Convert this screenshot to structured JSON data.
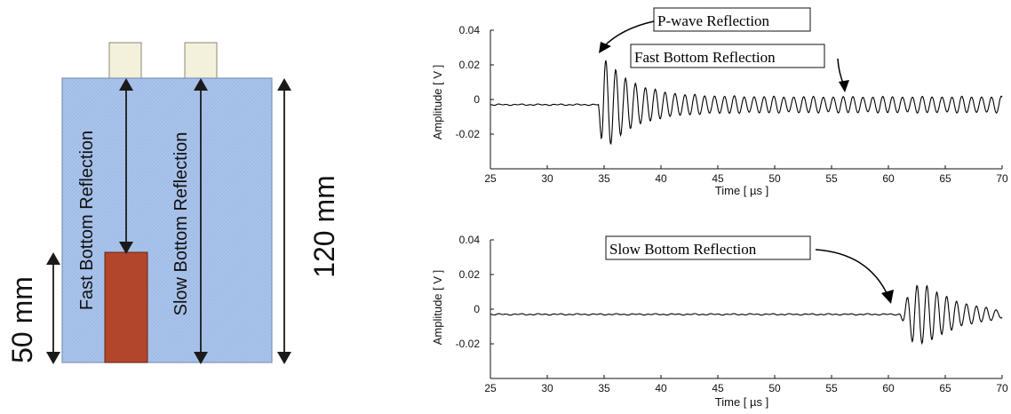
{
  "diagram": {
    "dim_120": "120 mm",
    "dim_50": "50 mm",
    "label_fast": "Fast Bottom Reflection",
    "label_slow": "Slow Bottom Reflection",
    "colors": {
      "block_fill": "#a9c4ec",
      "block_stroke": "#7f93b8",
      "inclusion_fill": "#b2462b",
      "transducer_fill": "#f3f0dc",
      "arrow": "#1a1a1a"
    }
  },
  "chart_data": [
    {
      "type": "line",
      "xlabel": "Time [ µs ]",
      "ylabel": "Amplitude [ V ]",
      "xlim": [
        25,
        70
      ],
      "ylim": [
        -0.04,
        0.04
      ],
      "xticks": [
        25,
        30,
        35,
        40,
        45,
        50,
        55,
        60,
        65,
        70
      ],
      "yticks": [
        {
          "value": 0.04,
          "label": "0.04"
        },
        {
          "value": 0.02,
          "label": "0.02"
        },
        {
          "value": 0,
          "label": "0"
        },
        {
          "value": -0.02,
          "label": "-0.02"
        }
      ],
      "annotations": [
        {
          "text": "P-wave Reflection",
          "x": 34.7,
          "y": 0.027
        },
        {
          "text": "Fast Bottom Reflection",
          "x": 56.5,
          "y": 0.003
        }
      ],
      "signal": {
        "baseline": -0.003,
        "onset": 34.5,
        "sustained_amplitude": 0.0045,
        "peak_amplitude": 0.032
      },
      "grid": false
    },
    {
      "type": "line",
      "xlabel": "Time [ µs ]",
      "ylabel": "Amplitude [ V ]",
      "xlim": [
        25,
        70
      ],
      "ylim": [
        -0.04,
        0.04
      ],
      "xticks": [
        25,
        30,
        35,
        40,
        45,
        50,
        55,
        60,
        65,
        70
      ],
      "yticks": [
        {
          "value": 0.04,
          "label": "0.04"
        },
        {
          "value": 0.02,
          "label": "0.02"
        },
        {
          "value": 0,
          "label": "0"
        },
        {
          "value": -0.02,
          "label": "-0.02"
        }
      ],
      "annotations": [
        {
          "text": "Slow Bottom Reflection",
          "x": 61.0,
          "y": 0.002
        }
      ],
      "signal": {
        "baseline": -0.003,
        "onset": 61.0,
        "sustained_amplitude": 0.0,
        "peak_amplitude": 0.017
      },
      "grid": false
    }
  ]
}
